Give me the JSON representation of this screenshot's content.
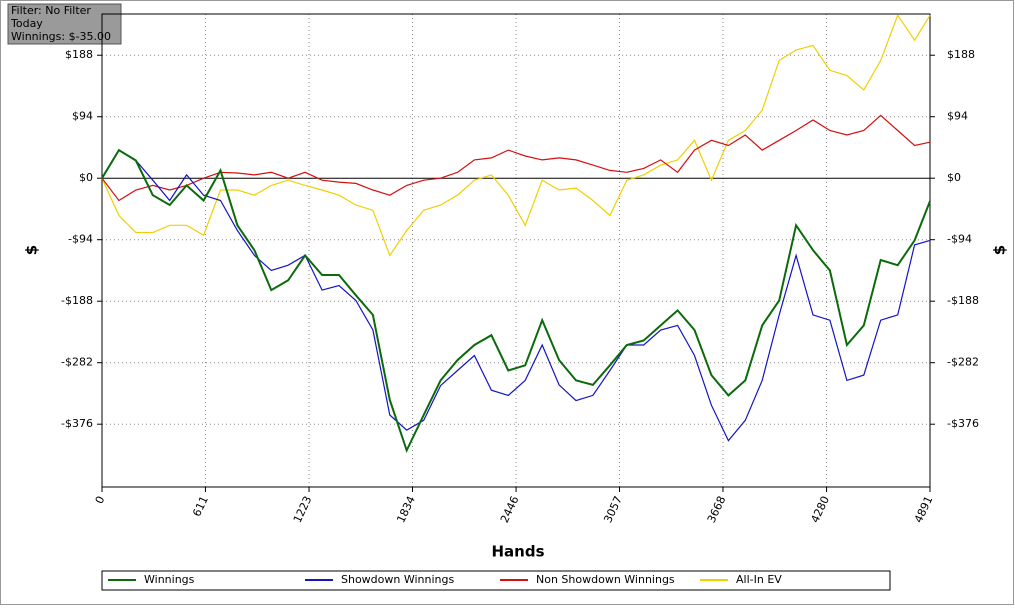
{
  "chart_data": {
    "type": "line",
    "info": [
      "Filter: No Filter",
      "Today",
      "Winnings: $-35.00"
    ],
    "xlabel": "Hands",
    "ylabel": "$",
    "xlim": [
      0,
      4891
    ],
    "ylim": [
      -472,
      251
    ],
    "xticks": [
      0,
      611,
      1223,
      1834,
      2446,
      3057,
      3668,
      4280,
      4891
    ],
    "yticks": [
      {
        "value": 188,
        "label": "$188"
      },
      {
        "value": 94,
        "label": "$94"
      },
      {
        "value": 0,
        "label": "$0"
      },
      {
        "value": -94,
        "label": "-$94"
      },
      {
        "value": -188,
        "label": "-$188"
      },
      {
        "value": -282,
        "label": "-$282"
      },
      {
        "value": -376,
        "label": "-$376"
      }
    ],
    "grid": true,
    "x": [
      0,
      100,
      200,
      300,
      400,
      500,
      600,
      700,
      800,
      900,
      1000,
      1100,
      1200,
      1300,
      1400,
      1500,
      1600,
      1700,
      1800,
      1900,
      2000,
      2100,
      2200,
      2300,
      2400,
      2500,
      2600,
      2700,
      2800,
      2900,
      3000,
      3100,
      3200,
      3300,
      3400,
      3500,
      3600,
      3700,
      3800,
      3900,
      4000,
      4100,
      4200,
      4300,
      4400,
      4500,
      4600,
      4700,
      4800,
      4891
    ],
    "series": [
      {
        "name": "Winnings",
        "color": "#0b6b0b",
        "values": [
          0,
          43,
          27,
          -26,
          -41,
          -11,
          -34,
          12,
          -72,
          -110,
          -171,
          -156,
          -118,
          -148,
          -148,
          -179,
          -209,
          -339,
          -416,
          -362,
          -309,
          -278,
          -255,
          -240,
          -294,
          -286,
          -217,
          -278,
          -309,
          -316,
          -286,
          -255,
          -248,
          -225,
          -202,
          -232,
          -301,
          -332,
          -309,
          -225,
          -187,
          -72,
          -110,
          -141,
          -255,
          -225,
          -125,
          -133,
          -95,
          -35
        ]
      },
      {
        "name": "Showdown Winnings",
        "color": "#1414c8",
        "values": [
          0,
          43,
          27,
          -3,
          -34,
          5,
          -26,
          -34,
          -80,
          -118,
          -141,
          -133,
          -118,
          -171,
          -164,
          -187,
          -232,
          -362,
          -385,
          -370,
          -317,
          -294,
          -271,
          -324,
          -332,
          -309,
          -255,
          -316,
          -340,
          -332,
          -294,
          -255,
          -255,
          -232,
          -225,
          -271,
          -347,
          -401,
          -370,
          -309,
          -209,
          -118,
          -209,
          -217,
          -309,
          -301,
          -217,
          -209,
          -102,
          -95
        ]
      },
      {
        "name": "Non Showdown Winnings",
        "color": "#d41010",
        "values": [
          0,
          -34,
          -18,
          -11,
          -18,
          -11,
          0,
          9,
          8,
          5,
          9,
          0,
          9,
          -3,
          -6,
          -8,
          -18,
          -26,
          -11,
          -3,
          0,
          9,
          28,
          31,
          43,
          34,
          28,
          31,
          28,
          20,
          12,
          9,
          15,
          28,
          9,
          43,
          58,
          50,
          66,
          43,
          58,
          73,
          89,
          73,
          66,
          73,
          96,
          73,
          50,
          55
        ]
      },
      {
        "name": "All-In EV",
        "color": "#f0d000",
        "values": [
          0,
          -57,
          -83,
          -83,
          -72,
          -72,
          -87,
          -18,
          -18,
          -26,
          -11,
          -3,
          -11,
          -18,
          -26,
          -41,
          -49,
          -118,
          -80,
          -49,
          -41,
          -26,
          -3,
          5,
          -26,
          -72,
          -3,
          -18,
          -15,
          -34,
          -57,
          -3,
          5,
          20,
          28,
          58,
          -3,
          58,
          73,
          104,
          180,
          196,
          203,
          165,
          157,
          135,
          180,
          249,
          211,
          249
        ]
      }
    ]
  }
}
